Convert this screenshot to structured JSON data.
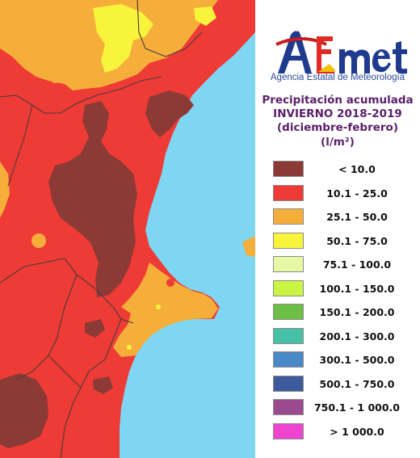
{
  "logo": {
    "text": "AEmet",
    "subtitle": "Agencia Estatal de Meteorología"
  },
  "title": {
    "line1": "Precipitación acumulada",
    "line2": "INVIERNO 2018-2019",
    "line3": "(diciembre-febrero)",
    "unit": "(l/m²)"
  },
  "legend": [
    {
      "label": "< 10.0",
      "color": "#8b3a36"
    },
    {
      "label": "10.1 - 25.0",
      "color": "#ee3b35"
    },
    {
      "label": "25.1 - 50.0",
      "color": "#f6ae3b"
    },
    {
      "label": "50.1 - 75.0",
      "color": "#f8f43c"
    },
    {
      "label": "75.1 - 100.0",
      "color": "#e4f8a6"
    },
    {
      "label": "100.1 - 150.0",
      "color": "#c9f542"
    },
    {
      "label": "150.1 - 200.0",
      "color": "#6dbe45"
    },
    {
      "label": "200.1 - 300.0",
      "color": "#47c1a6"
    },
    {
      "label": "300.1 - 500.0",
      "color": "#4a89c8"
    },
    {
      "label": "500.1 - 750.0",
      "color": "#3d5a9c"
    },
    {
      "label": "750.1 - 1 000.0",
      "color": "#9c4a90"
    },
    {
      "label": "> 1 000.0",
      "color": "#ee44d0"
    }
  ]
}
